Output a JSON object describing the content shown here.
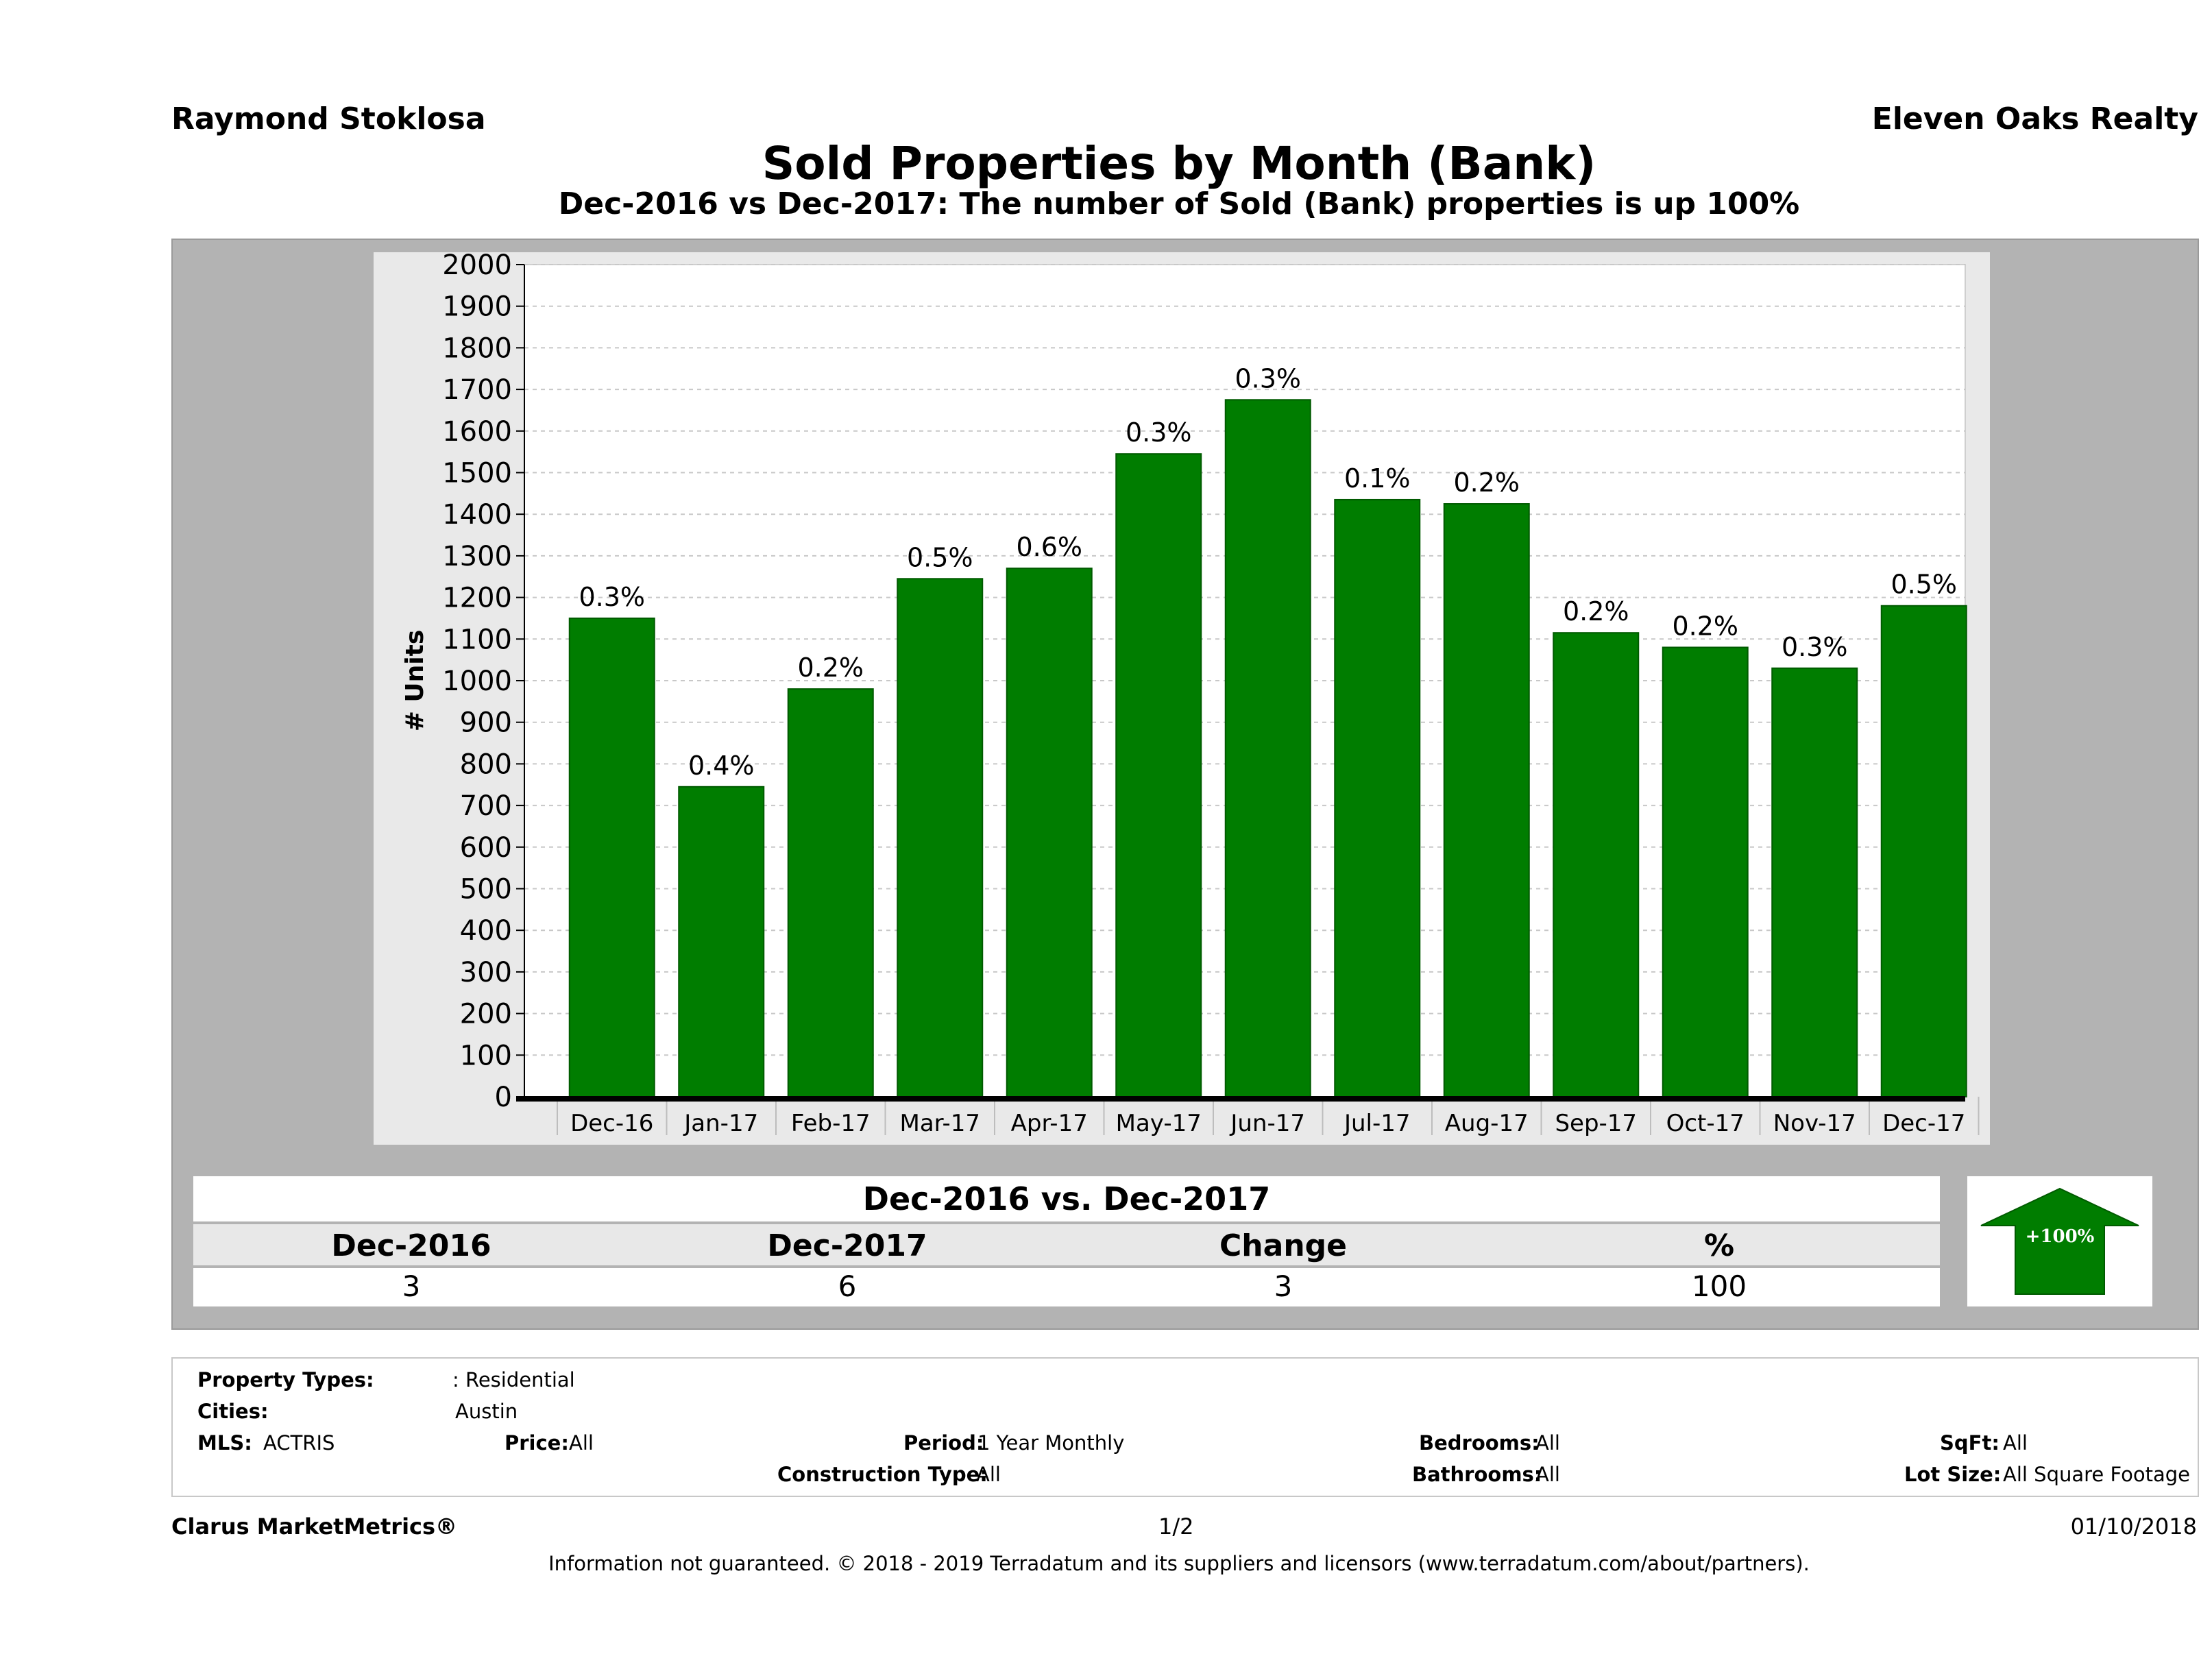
{
  "header": {
    "agent": "Raymond Stoklosa",
    "company": "Eleven Oaks Realty",
    "title": "Sold Properties by Month (Bank)",
    "subtitle": "Dec-2016 vs Dec-2017: The number of Sold (Bank)  properties is up 100%"
  },
  "chart_data": {
    "type": "bar",
    "ylabel": "# Units",
    "xlabel": "",
    "ylim": [
      0,
      2000
    ],
    "yticks": [
      0,
      100,
      200,
      300,
      400,
      500,
      600,
      700,
      800,
      900,
      1000,
      1100,
      1200,
      1300,
      1400,
      1500,
      1600,
      1700,
      1800,
      1900,
      2000
    ],
    "grid": true,
    "categories": [
      "Dec-16",
      "Jan-17",
      "Feb-17",
      "Mar-17",
      "Apr-17",
      "May-17",
      "Jun-17",
      "Jul-17",
      "Aug-17",
      "Sep-17",
      "Oct-17",
      "Nov-17",
      "Dec-17"
    ],
    "values": [
      1150,
      745,
      980,
      1245,
      1270,
      1545,
      1675,
      1435,
      1425,
      1115,
      1080,
      1030,
      1180
    ],
    "data_labels": [
      "0.3%",
      "0.4%",
      "0.2%",
      "0.5%",
      "0.6%",
      "0.3%",
      "0.3%",
      "0.1%",
      "0.2%",
      "0.2%",
      "0.2%",
      "0.3%",
      "0.5%"
    ],
    "bar_color": "#007d00"
  },
  "comparison": {
    "title": "Dec-2016 vs. Dec-2017",
    "headers": [
      "Dec-2016",
      "Dec-2017",
      "Change",
      "%"
    ],
    "values": [
      "3",
      "6",
      "3",
      "100"
    ],
    "arrow_label": "+100%",
    "arrow_color": "#007d00"
  },
  "info": {
    "property_types_label": "Property Types:",
    "property_types_value": ": Residential",
    "cities_label": "Cities:",
    "cities_value": "Austin",
    "mls_label": "MLS:",
    "mls_value": "ACTRIS",
    "price_label": "Price:",
    "price_value": "All",
    "period_label": "Period:",
    "period_value": "1 Year Monthly",
    "construction_label": "Construction Type:",
    "construction_value": "All",
    "bedrooms_label": "Bedrooms:",
    "bedrooms_value": "All",
    "bathrooms_label": "Bathrooms:",
    "bathrooms_value": "All",
    "sqft_label": "SqFt:",
    "sqft_value": "All",
    "lotsize_label": "Lot Size:",
    "lotsize_value": "All Square Footage"
  },
  "footer": {
    "brand": "Clarus MarketMetrics®",
    "page": "1/2",
    "date": "01/10/2018",
    "disclaimer": "Information not guaranteed. © 2018 - 2019 Terradatum and its suppliers and licensors (www.terradatum.com/about/partners)."
  }
}
